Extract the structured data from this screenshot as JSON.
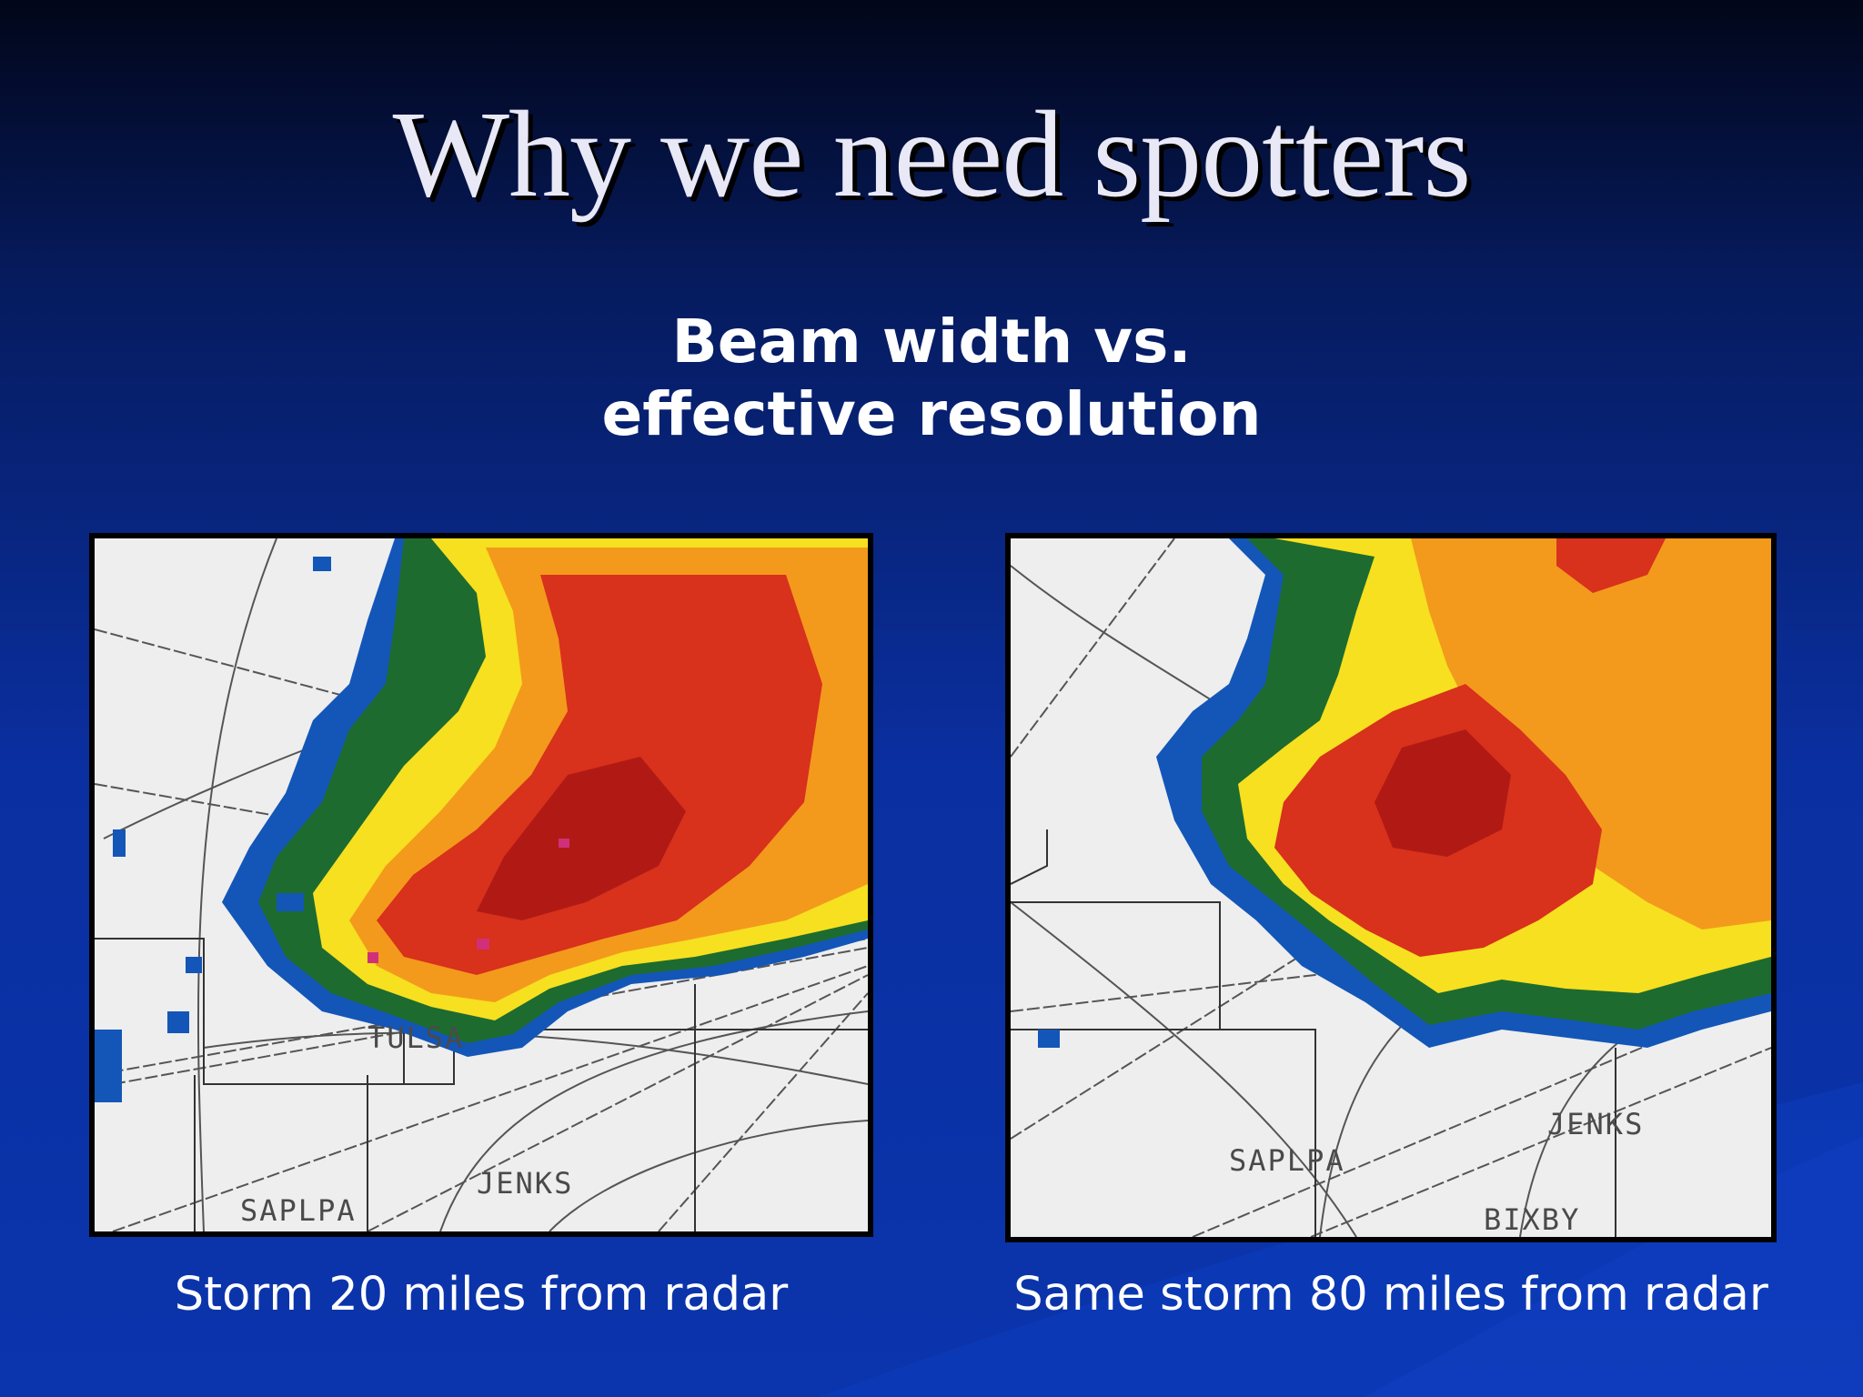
{
  "slide": {
    "title": "Why we need spotters",
    "subtitle_line1": "Beam width vs.",
    "subtitle_line2": "effective resolution"
  },
  "panels": [
    {
      "caption": "Storm 20 miles from radar",
      "map_labels": {
        "city1": "TULSA",
        "city2": "SAPLPA",
        "city3": "JENKS"
      }
    },
    {
      "caption": "Same storm 80 miles from radar",
      "map_labels": {
        "city1": "JENKS",
        "city2": "SAPLPA",
        "city3": "BIXBY"
      }
    }
  ],
  "colors": {
    "background_top": "#020619",
    "background_bottom": "#0b35ad",
    "reflectivity": [
      "#1356b8",
      "#1e6b2f",
      "#f6e020",
      "#f39a1c",
      "#d8311c",
      "#b11a14",
      "#d0307a"
    ]
  }
}
